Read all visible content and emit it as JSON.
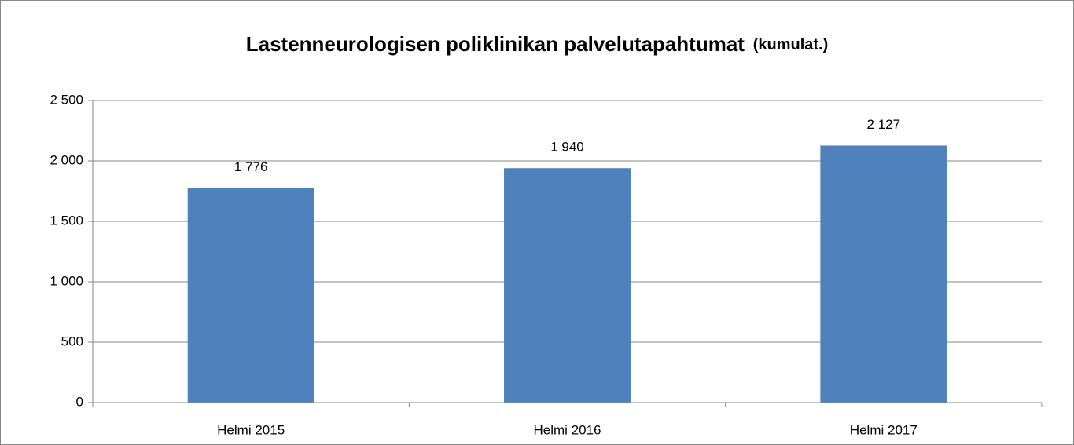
{
  "chart_data": {
    "type": "bar",
    "title": "Lastenneurologisen poliklinikan palvelutapahtumat",
    "subtitle": "(kumulat.)",
    "categories": [
      "Helmi 2015",
      "Helmi 2016",
      "Helmi 2017"
    ],
    "values": [
      1776,
      1940,
      2127
    ],
    "value_labels": [
      "1 776",
      "1 940",
      "2 127"
    ],
    "color": "#4f81bd",
    "ylim": [
      0,
      2500
    ],
    "yticks": [
      0,
      500,
      {
        "value": 1000,
        "label": "1 000"
      },
      {
        "value": 1500,
        "label": "1 500"
      },
      {
        "value": 2000,
        "label": "2 000"
      },
      {
        "value": 2500,
        "label": "2 500"
      }
    ],
    "grid": true
  }
}
